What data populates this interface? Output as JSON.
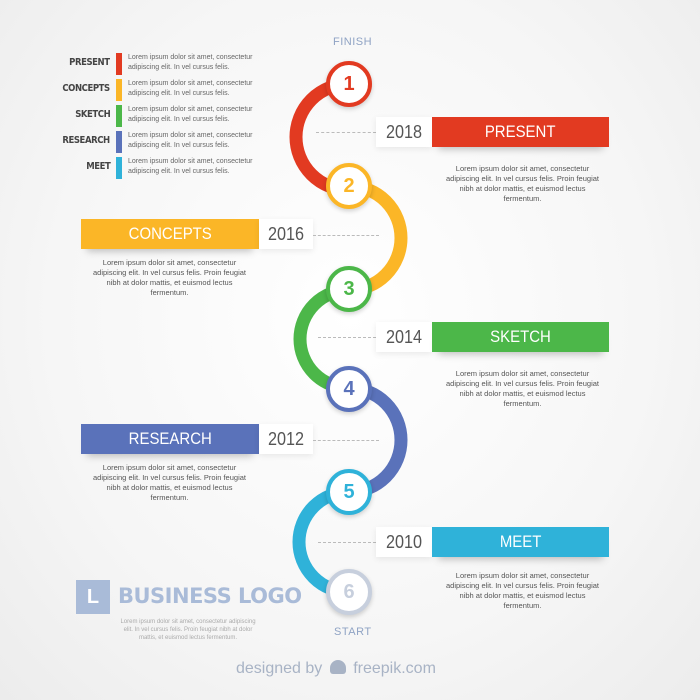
{
  "colors": {
    "red": "#e23a21",
    "orange": "#fbb627",
    "green": "#4cb749",
    "blue": "#5a72ba",
    "cyan": "#2fb2d9",
    "gray": "#c7cfdd"
  },
  "top_label": "FINISH",
  "bottom_label": "START",
  "legend": [
    {
      "label": "PRESENT",
      "text": "Lorem ipsum dolor sit amet, consectetur adipiscing elit. In vel cursus felis.",
      "color": "red"
    },
    {
      "label": "CONCEPTS",
      "text": "Lorem ipsum dolor sit amet, consectetur adipiscing elit. In vel cursus felis.",
      "color": "orange"
    },
    {
      "label": "SKETCH",
      "text": "Lorem ipsum dolor sit amet, consectetur adipiscing elit. In vel cursus felis.",
      "color": "green"
    },
    {
      "label": "RESEARCH",
      "text": "Lorem ipsum dolor sit amet, consectetur adipiscing elit. In vel cursus felis.",
      "color": "blue"
    },
    {
      "label": "MEET",
      "text": "Lorem ipsum dolor sit amet, consectetur adipiscing elit. In vel cursus felis.",
      "color": "cyan"
    }
  ],
  "nodes": [
    "1",
    "2",
    "3",
    "4",
    "5",
    "6"
  ],
  "milestones": [
    {
      "year": "2018",
      "title": "PRESENT",
      "text": "Lorem ipsum dolor sit amet, consectetur adipiscing elit. In vel cursus felis. Proin feugiat nibh at dolor mattis, et euismod lectus fermentum."
    },
    {
      "year": "2016",
      "title": "CONCEPTS",
      "text": "Lorem ipsum dolor sit amet, consectetur adipiscing elit. In vel cursus felis. Proin feugiat nibh at dolor mattis, et euismod lectus fermentum."
    },
    {
      "year": "2014",
      "title": "SKETCH",
      "text": "Lorem ipsum dolor sit amet, consectetur adipiscing elit. In vel cursus felis. Proin feugiat nibh at dolor mattis, et euismod lectus fermentum."
    },
    {
      "year": "2012",
      "title": "RESEARCH",
      "text": "Lorem ipsum dolor sit amet, consectetur adipiscing elit. In vel cursus felis. Proin feugiat nibh at dolor mattis, et euismod lectus fermentum."
    },
    {
      "year": "2010",
      "title": "MEET",
      "text": "Lorem ipsum dolor sit amet, consectetur adipiscing elit. In vel cursus felis. Proin feugiat nibh at dolor mattis, et euismod lectus fermentum."
    }
  ],
  "logo": {
    "letter": "L",
    "name": "BUSINESS LOGO",
    "text": "Lorem ipsum dolor sit amet, consectetur adipiscing elit. In vel cursus felis. Proin feugiat nibh at dolor mattis, et euismod lectus fermentum."
  },
  "credit": {
    "prefix": "designed by",
    "brand": "freepik.com"
  }
}
